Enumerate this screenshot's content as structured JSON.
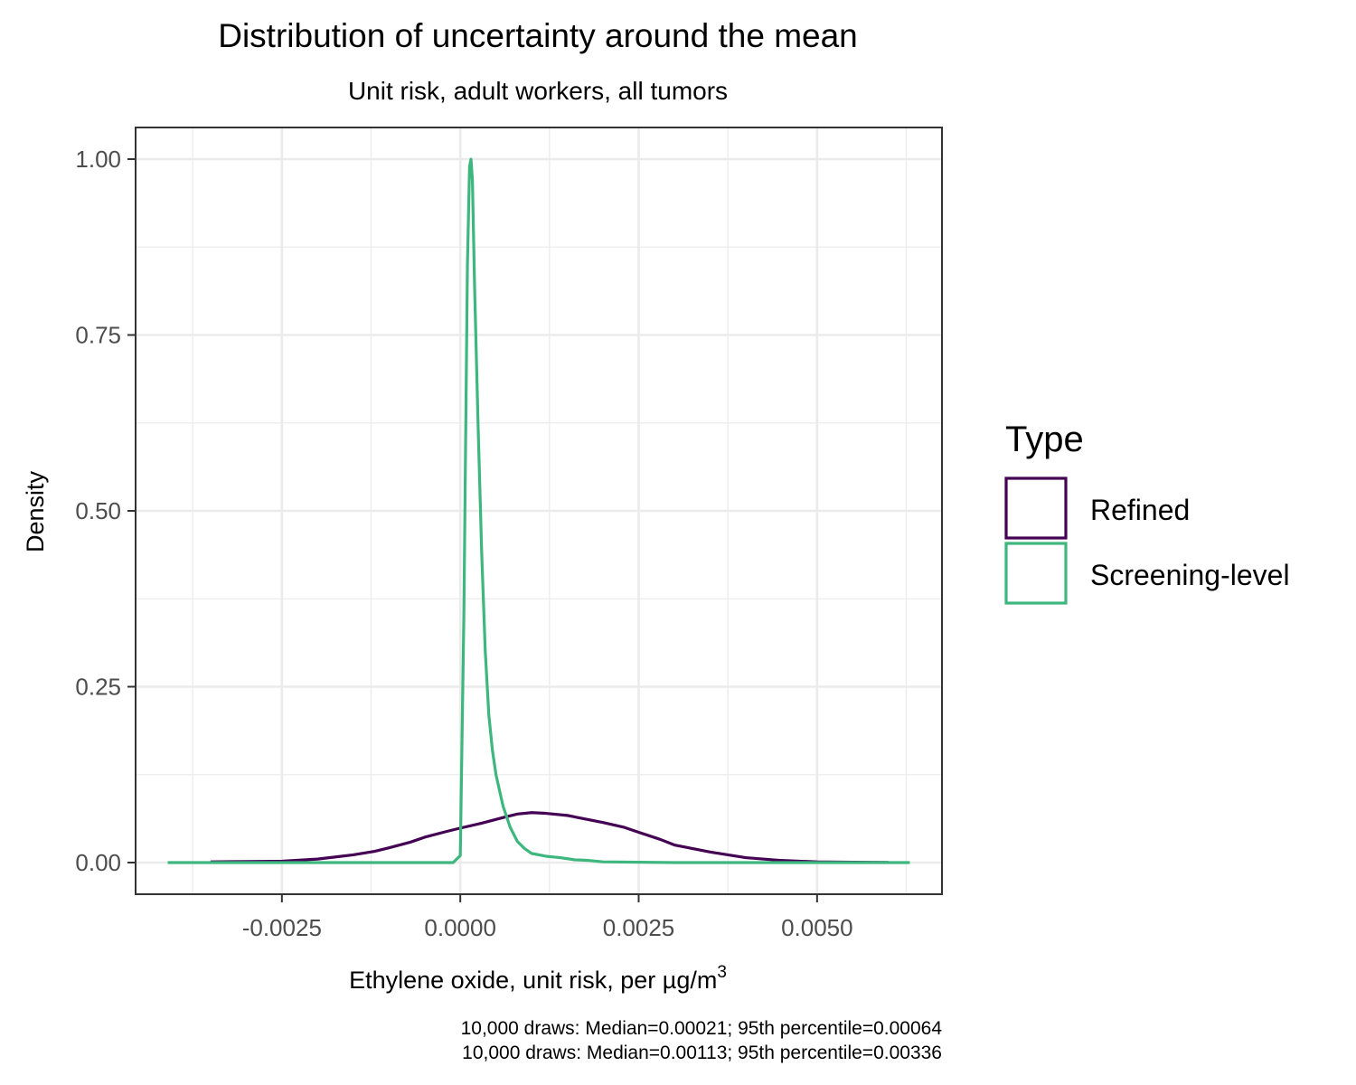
{
  "chart_data": {
    "type": "line",
    "title": "Distribution of uncertainty around the mean",
    "subtitle": "Unit risk, adult workers, all tumors",
    "xlabel": "Ethylene oxide, unit risk, per",
    "xlabel_unit": "µg/m",
    "xlabel_unit_sup": "3",
    "ylabel": "Density",
    "xlim": [
      -0.00455,
      0.00675
    ],
    "ylim": [
      -0.045,
      1.045
    ],
    "x_ticks": [
      -0.0025,
      0.0,
      0.0025,
      0.005
    ],
    "x_tick_labels": [
      "-0.0025",
      "0.0000",
      "0.0025",
      "0.0050"
    ],
    "y_ticks": [
      0.0,
      0.25,
      0.5,
      0.75,
      1.0
    ],
    "y_tick_labels": [
      "0.00",
      "0.25",
      "0.50",
      "0.75",
      "1.00"
    ],
    "grid": true,
    "legend": {
      "title": "Type",
      "position": "right",
      "entries": [
        {
          "label": "Refined",
          "color": "#440154"
        },
        {
          "label": "Screening-level",
          "color": "#3DB77E"
        }
      ]
    },
    "series": [
      {
        "name": "Refined",
        "color": "#440154",
        "x": [
          -0.0035,
          -0.003,
          -0.0025,
          -0.002,
          -0.0015,
          -0.0012,
          -0.001,
          -0.0007,
          -0.0005,
          -0.0002,
          0.0,
          0.0003,
          0.0006,
          0.0008,
          0.001,
          0.0012,
          0.0015,
          0.0018,
          0.002,
          0.0023,
          0.0025,
          0.0028,
          0.003,
          0.0033,
          0.0035,
          0.004,
          0.0045,
          0.005,
          0.0055,
          0.006
        ],
        "y": [
          0.001,
          0.0015,
          0.002,
          0.005,
          0.011,
          0.016,
          0.021,
          0.029,
          0.036,
          0.044,
          0.049,
          0.056,
          0.064,
          0.069,
          0.071,
          0.07,
          0.067,
          0.061,
          0.057,
          0.05,
          0.043,
          0.033,
          0.025,
          0.019,
          0.015,
          0.007,
          0.003,
          0.001,
          0.0005,
          0.0002
        ]
      },
      {
        "name": "Screening-level",
        "color": "#3DB77E",
        "x": [
          -0.0041,
          -0.002,
          -0.0001,
          0.0,
          5e-05,
          0.0001,
          0.00013,
          0.00015,
          0.00017,
          0.0002,
          0.00025,
          0.0003,
          0.00035,
          0.0004,
          0.00045,
          0.0005,
          0.0006,
          0.0007,
          0.0008,
          0.0009,
          0.001,
          0.0012,
          0.0014,
          0.0016,
          0.0018,
          0.002,
          0.003,
          0.0045,
          0.0063
        ],
        "y": [
          0.0,
          0.0,
          0.0,
          0.01,
          0.35,
          0.85,
          0.99,
          1.0,
          0.97,
          0.82,
          0.62,
          0.44,
          0.3,
          0.21,
          0.16,
          0.125,
          0.08,
          0.05,
          0.03,
          0.02,
          0.013,
          0.009,
          0.007,
          0.004,
          0.003,
          0.001,
          0.0,
          0.0,
          0.0
        ]
      }
    ],
    "caption_lines": [
      "10,000 draws: Median=0.00021; 95th percentile=0.00064",
      "10,000 draws: Median=0.00113; 95th percentile=0.00336"
    ]
  }
}
